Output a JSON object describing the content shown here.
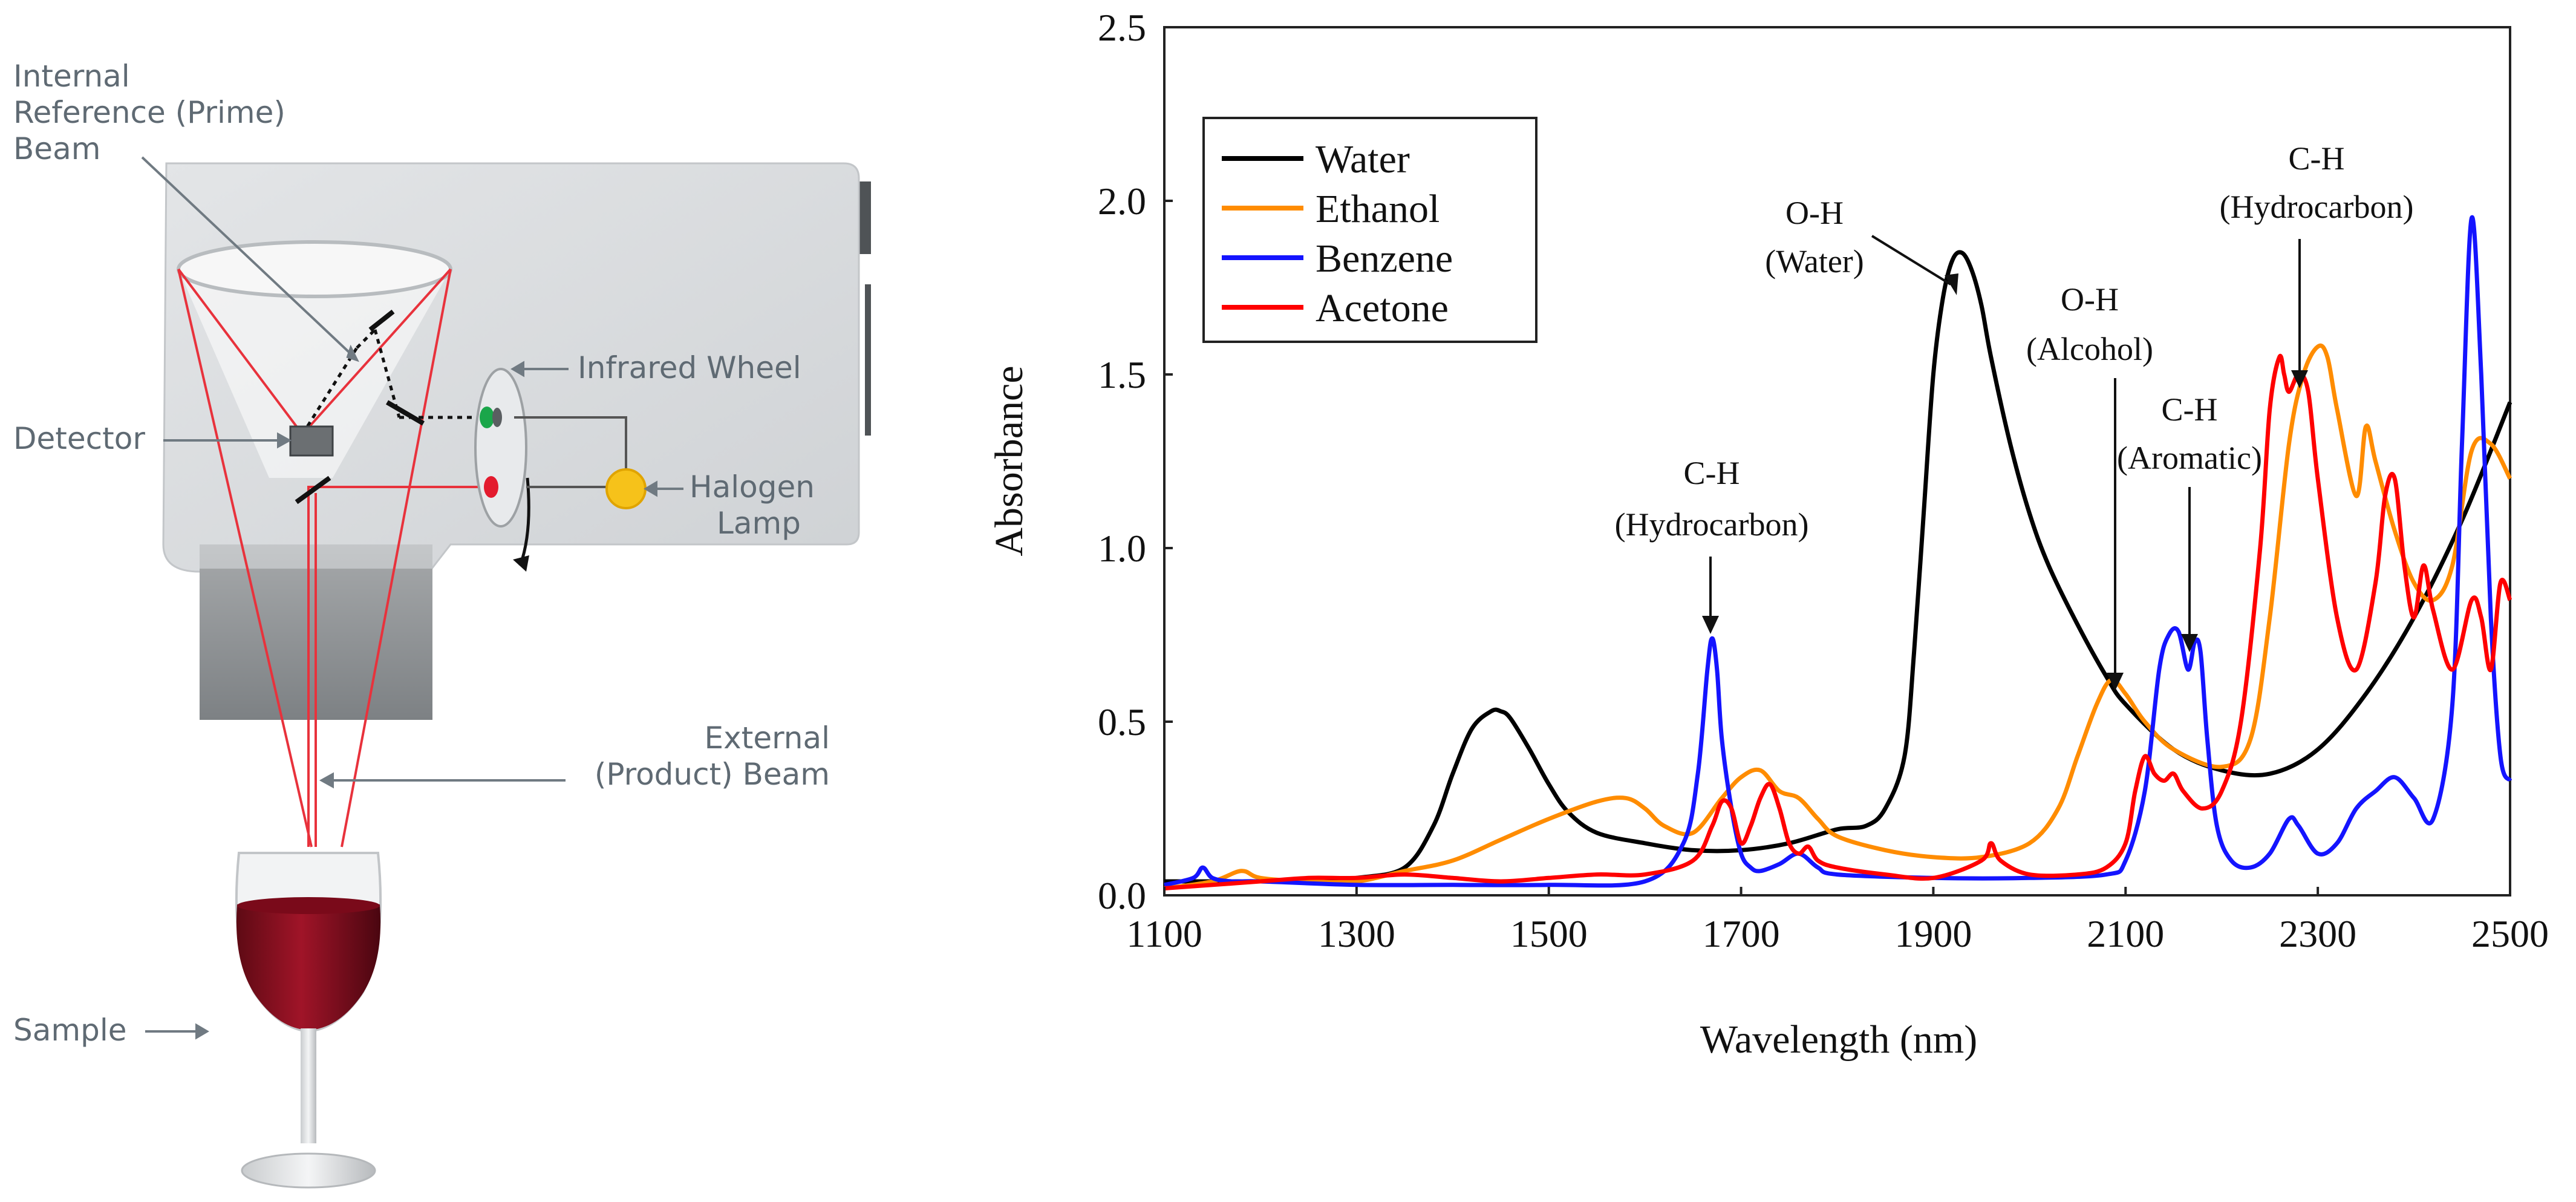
{
  "colors": {
    "water": "#000000",
    "ethanol": "#ff8c00",
    "benzene": "#1414ff",
    "acetone": "#ff0000",
    "beam": "#e8323c",
    "housing": "#d5d8da",
    "label_gray": "#5f6a73",
    "lamp": "#f6c21a"
  },
  "diagram": {
    "labels": {
      "internal_ref_line1": "Internal",
      "internal_ref_line2": "Reference (Prime)",
      "internal_ref_line3": "Beam",
      "infrared_wheel": "Infrared Wheel",
      "detector": "Detector",
      "halogen_line1": "Halogen",
      "halogen_line2": "Lamp",
      "external_line1": "External",
      "external_line2": "(Product) Beam",
      "sample": "Sample"
    }
  },
  "chart_data": {
    "type": "line",
    "title": "",
    "xlabel": "Wavelength (nm)",
    "ylabel": "Absorbance",
    "xlim": [
      1100,
      2500
    ],
    "ylim": [
      0,
      2.5
    ],
    "xticks": [
      "1100",
      "1300",
      "1500",
      "1700",
      "1900",
      "2100",
      "2300",
      "2500"
    ],
    "yticks": [
      "0.0",
      "0.5",
      "1.0",
      "1.5",
      "2.0",
      "2.5"
    ],
    "legend": {
      "placement": "top-left",
      "entries": [
        "Water",
        "Ethanol",
        "Benzene",
        "Acetone"
      ]
    },
    "annotations": {
      "ch_hydrocarbon_1_line1": "C-H",
      "ch_hydrocarbon_1_line2": "(Hydrocarbon)",
      "oh_water_line1": "O-H",
      "oh_water_line2": "(Water)",
      "oh_alcohol_line1": "O-H",
      "oh_alcohol_line2": "(Alcohol)",
      "ch_aromatic_line1": "C-H",
      "ch_aromatic_line2": "(Aromatic)",
      "ch_hydrocarbon_2_line1": "C-H",
      "ch_hydrocarbon_2_line2": "(Hydrocarbon)"
    },
    "series": [
      {
        "name": "Water",
        "x": [
          1100,
          1150,
          1200,
          1250,
          1300,
          1350,
          1380,
          1400,
          1420,
          1440,
          1450,
          1460,
          1480,
          1500,
          1520,
          1550,
          1600,
          1650,
          1700,
          1750,
          1800,
          1830,
          1850,
          1870,
          1880,
          1890,
          1900,
          1910,
          1920,
          1930,
          1940,
          1950,
          1960,
          1980,
          2000,
          2020,
          2050,
          2080,
          2100,
          2150,
          2200,
          2250,
          2300,
          2350,
          2400,
          2450,
          2500
        ],
        "y": [
          0.04,
          0.04,
          0.04,
          0.04,
          0.05,
          0.08,
          0.2,
          0.35,
          0.48,
          0.53,
          0.53,
          0.51,
          0.42,
          0.32,
          0.24,
          0.18,
          0.15,
          0.13,
          0.13,
          0.15,
          0.19,
          0.2,
          0.25,
          0.4,
          0.7,
          1.1,
          1.5,
          1.72,
          1.83,
          1.85,
          1.8,
          1.7,
          1.55,
          1.3,
          1.1,
          0.95,
          0.78,
          0.63,
          0.55,
          0.42,
          0.36,
          0.35,
          0.42,
          0.58,
          0.8,
          1.08,
          1.42
        ]
      },
      {
        "name": "Ethanol",
        "x": [
          1100,
          1150,
          1180,
          1200,
          1250,
          1300,
          1350,
          1400,
          1450,
          1500,
          1550,
          1580,
          1600,
          1620,
          1650,
          1680,
          1700,
          1720,
          1740,
          1760,
          1780,
          1800,
          1850,
          1900,
          1950,
          2000,
          2030,
          2050,
          2070,
          2085,
          2100,
          2120,
          2150,
          2200,
          2230,
          2250,
          2270,
          2285,
          2300,
          2310,
          2320,
          2340,
          2350,
          2360,
          2380,
          2400,
          2420,
          2440,
          2460,
          2480,
          2500
        ],
        "y": [
          0.02,
          0.04,
          0.07,
          0.05,
          0.04,
          0.04,
          0.07,
          0.1,
          0.16,
          0.22,
          0.27,
          0.28,
          0.25,
          0.2,
          0.18,
          0.28,
          0.34,
          0.36,
          0.3,
          0.28,
          0.22,
          0.17,
          0.13,
          0.11,
          0.11,
          0.15,
          0.25,
          0.4,
          0.55,
          0.62,
          0.58,
          0.5,
          0.42,
          0.37,
          0.45,
          0.8,
          1.3,
          1.5,
          1.58,
          1.55,
          1.4,
          1.15,
          1.35,
          1.25,
          1.05,
          0.9,
          0.85,
          0.95,
          1.28,
          1.3,
          1.2
        ]
      },
      {
        "name": "Benzene",
        "x": [
          1100,
          1130,
          1140,
          1150,
          1170,
          1200,
          1300,
          1400,
          1500,
          1600,
          1640,
          1655,
          1665,
          1670,
          1675,
          1680,
          1690,
          1700,
          1710,
          1720,
          1740,
          1760,
          1780,
          1800,
          1900,
          2000,
          2080,
          2100,
          2120,
          2135,
          2145,
          2155,
          2165,
          2172,
          2178,
          2185,
          2195,
          2210,
          2230,
          2250,
          2270,
          2280,
          2300,
          2320,
          2340,
          2360,
          2380,
          2400,
          2420,
          2440,
          2450,
          2460,
          2470,
          2480,
          2490,
          2500
        ],
        "y": [
          0.03,
          0.05,
          0.08,
          0.05,
          0.04,
          0.04,
          0.03,
          0.03,
          0.03,
          0.04,
          0.15,
          0.35,
          0.65,
          0.74,
          0.65,
          0.45,
          0.25,
          0.12,
          0.08,
          0.07,
          0.09,
          0.12,
          0.08,
          0.06,
          0.05,
          0.05,
          0.06,
          0.1,
          0.3,
          0.65,
          0.75,
          0.76,
          0.65,
          0.73,
          0.7,
          0.45,
          0.2,
          0.1,
          0.08,
          0.12,
          0.22,
          0.2,
          0.12,
          0.15,
          0.25,
          0.3,
          0.34,
          0.28,
          0.22,
          0.55,
          1.3,
          1.95,
          1.5,
          0.8,
          0.4,
          0.33
        ]
      },
      {
        "name": "Acetone",
        "x": [
          1100,
          1150,
          1200,
          1250,
          1300,
          1350,
          1400,
          1450,
          1500,
          1550,
          1600,
          1650,
          1670,
          1680,
          1690,
          1700,
          1710,
          1720,
          1730,
          1740,
          1750,
          1760,
          1770,
          1780,
          1800,
          1850,
          1900,
          1950,
          1960,
          1970,
          2000,
          2050,
          2080,
          2100,
          2110,
          2120,
          2130,
          2140,
          2150,
          2160,
          2180,
          2200,
          2220,
          2240,
          2250,
          2260,
          2265,
          2270,
          2280,
          2290,
          2300,
          2320,
          2340,
          2360,
          2370,
          2380,
          2390,
          2400,
          2410,
          2420,
          2440,
          2460,
          2470,
          2480,
          2490,
          2500
        ],
        "y": [
          0.02,
          0.03,
          0.04,
          0.05,
          0.05,
          0.06,
          0.05,
          0.04,
          0.05,
          0.06,
          0.06,
          0.1,
          0.2,
          0.27,
          0.25,
          0.15,
          0.2,
          0.28,
          0.32,
          0.25,
          0.15,
          0.12,
          0.14,
          0.1,
          0.08,
          0.06,
          0.05,
          0.1,
          0.15,
          0.1,
          0.06,
          0.06,
          0.08,
          0.15,
          0.3,
          0.4,
          0.35,
          0.33,
          0.35,
          0.3,
          0.25,
          0.3,
          0.5,
          1.0,
          1.4,
          1.55,
          1.5,
          1.45,
          1.5,
          1.45,
          1.2,
          0.8,
          0.65,
          0.9,
          1.15,
          1.2,
          0.95,
          0.8,
          0.95,
          0.82,
          0.65,
          0.85,
          0.8,
          0.65,
          0.9,
          0.85
        ]
      }
    ]
  }
}
